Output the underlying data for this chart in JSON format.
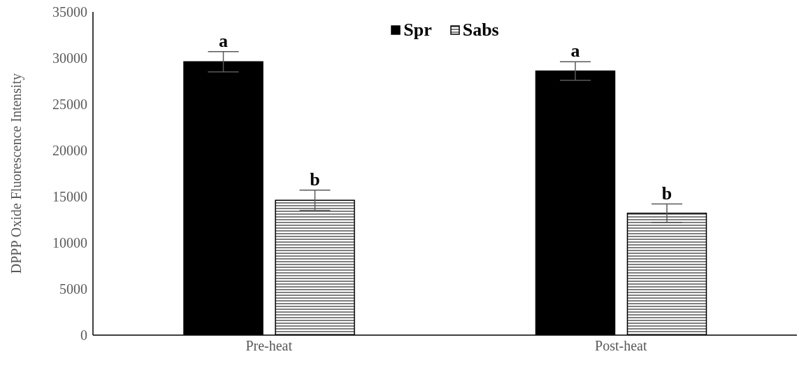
{
  "chart_data": {
    "type": "bar",
    "ylabel": "DPPP Oxide Fluorescence Intensity",
    "categories": [
      "Pre-heat",
      "Post-heat"
    ],
    "series": [
      {
        "name": "Spr",
        "color": "#000000",
        "values": [
          29600,
          28600
        ],
        "errors": [
          1100,
          1000
        ],
        "value_labels": [
          "a",
          "a"
        ]
      },
      {
        "name": "Sabs",
        "color": "#000000",
        "values": [
          14600,
          13200
        ],
        "errors": [
          1100,
          1000
        ],
        "value_labels": [
          "b",
          "b"
        ]
      }
    ],
    "ylim": [
      0,
      35000
    ],
    "yticks": [
      0,
      5000,
      10000,
      15000,
      20000,
      25000,
      30000,
      35000
    ],
    "grid": false,
    "legend": "top"
  }
}
